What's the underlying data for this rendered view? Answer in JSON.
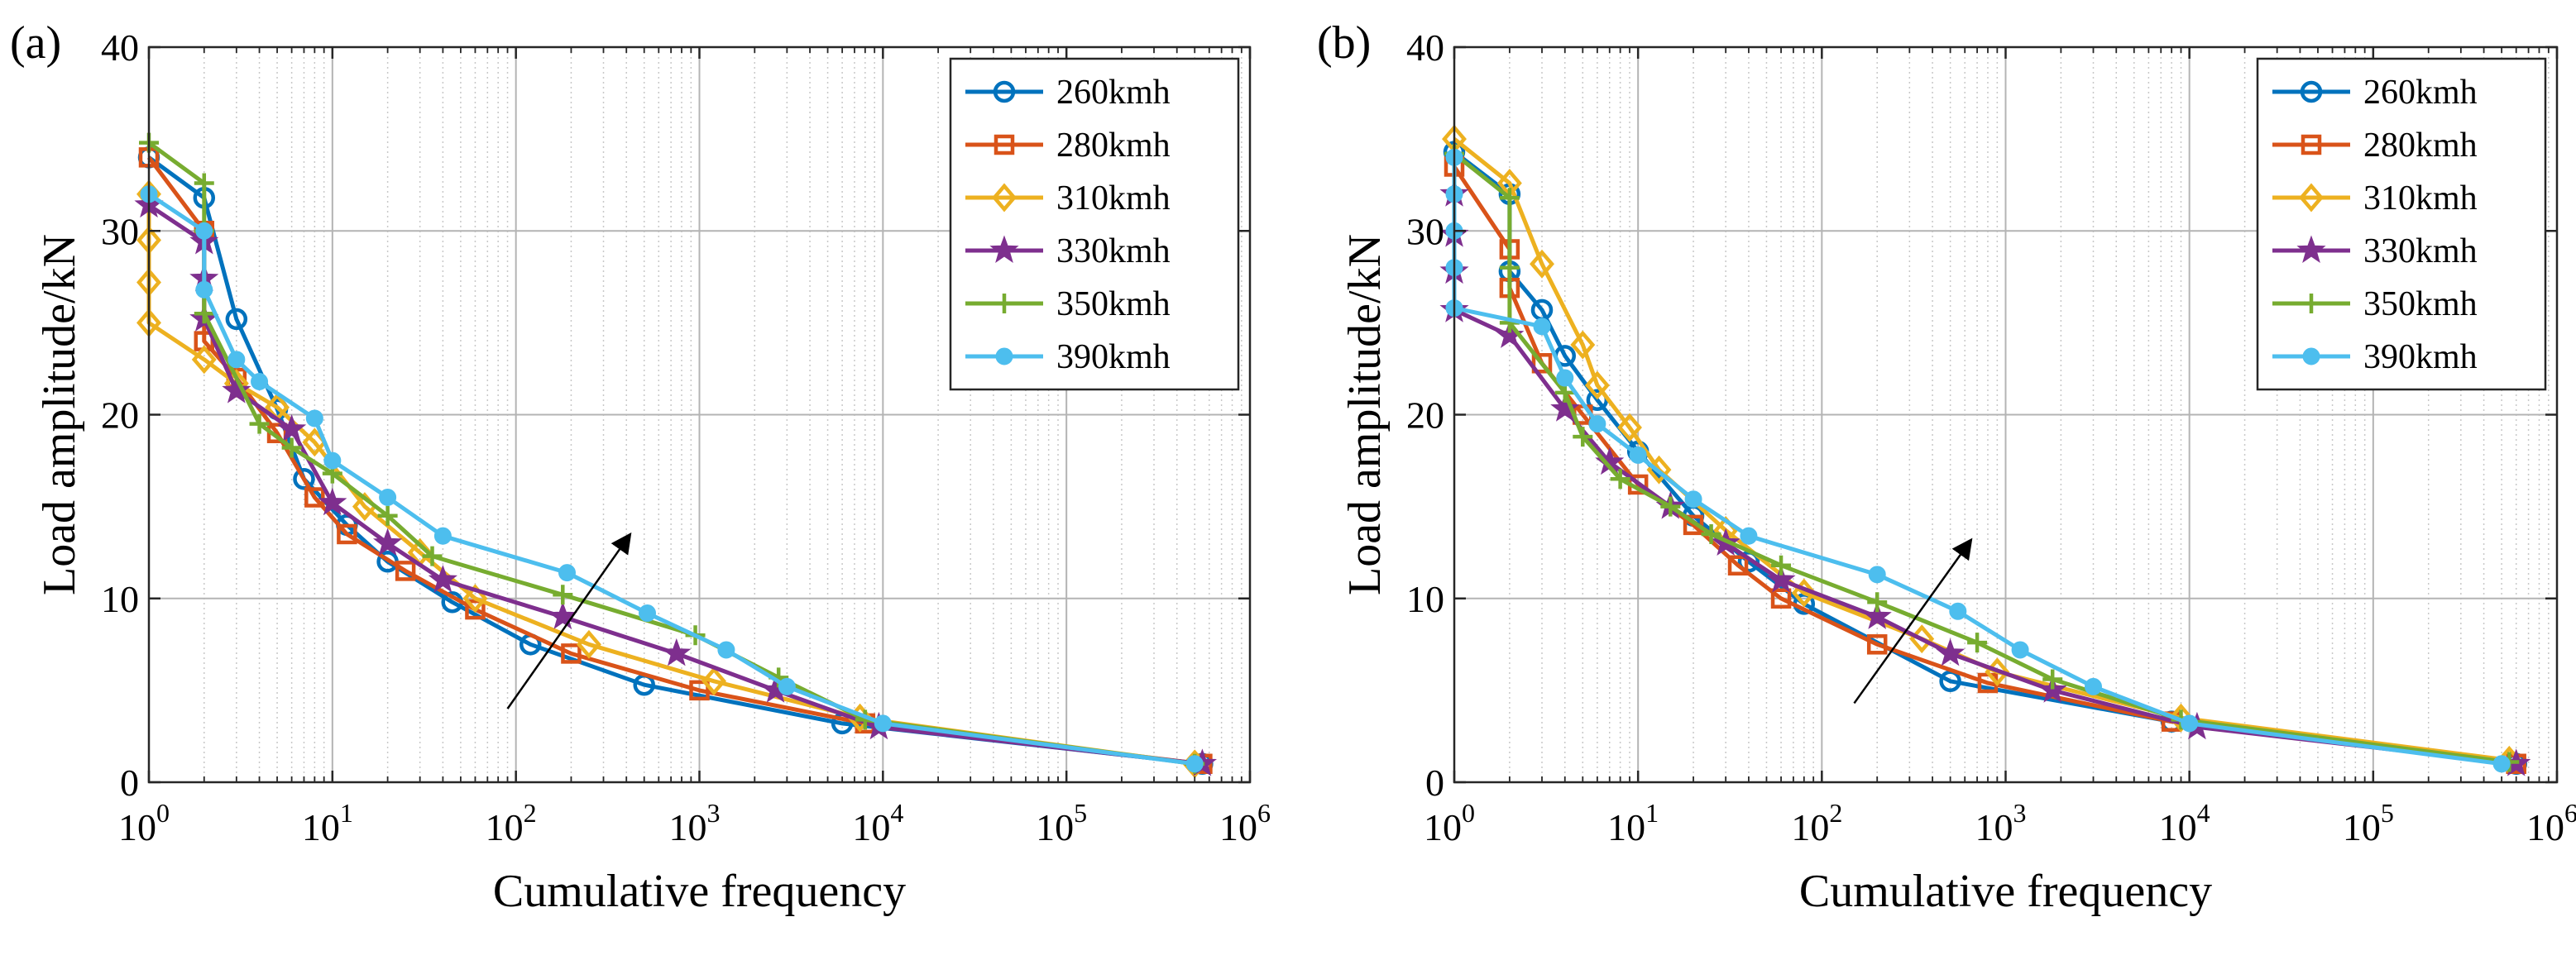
{
  "chart_data": [
    {
      "panel": "(a)",
      "type": "line",
      "xscale": "log",
      "xlim": [
        1,
        1000000
      ],
      "ylim": [
        0,
        40
      ],
      "yticks": [
        0,
        10,
        20,
        30,
        40
      ],
      "xtick_exponents": [
        0,
        1,
        2,
        3,
        4,
        5,
        6
      ],
      "xtick_base": "10",
      "xlabel": "Cumulative frequency",
      "ylabel": "Load amplitude/kN",
      "grid": true,
      "legend_position": "top-right",
      "arrow": {
        "from": [
          90,
          4
        ],
        "to": [
          420,
          13.5
        ]
      },
      "series": [
        {
          "name": "260kmh",
          "color": "#0072BD",
          "marker": "circle",
          "x": [
            1,
            2,
            3,
            5,
            7,
            12,
            20,
            45,
            120,
            500,
            6000,
            550000
          ],
          "y": [
            34,
            31.8,
            25.2,
            20.3,
            16.5,
            14,
            12,
            9.8,
            7.5,
            5.3,
            3.2,
            1
          ]
        },
        {
          "name": "280kmh",
          "color": "#D95319",
          "marker": "square",
          "x": [
            1,
            2,
            2,
            3,
            5,
            8,
            12,
            25,
            60,
            200,
            1000,
            8000,
            550000
          ],
          "y": [
            34,
            30,
            24,
            22,
            19,
            15.5,
            13.5,
            11.5,
            9.4,
            7,
            5,
            3.2,
            1
          ]
        },
        {
          "name": "310kmh",
          "color": "#EDB120",
          "marker": "diamond",
          "x": [
            1,
            1,
            1,
            1,
            2,
            3,
            5,
            8,
            15,
            30,
            60,
            250,
            1200,
            7500,
            500000
          ],
          "y": [
            32,
            29.5,
            27.2,
            25,
            23,
            21.7,
            20.4,
            18.5,
            15,
            12.5,
            10,
            7.5,
            5.5,
            3.5,
            1
          ]
        },
        {
          "name": "330kmh",
          "color": "#7E2F8E",
          "marker": "star",
          "x": [
            1,
            2,
            2,
            2,
            3,
            6,
            10,
            20,
            40,
            180,
            750,
            2600,
            9500,
            550000
          ],
          "y": [
            31.4,
            29.4,
            27.4,
            25.2,
            21.3,
            19.2,
            15.2,
            13,
            11,
            9,
            7,
            5,
            3,
            1
          ]
        },
        {
          "name": "350kmh",
          "color": "#77AC30",
          "marker": "plus",
          "x": [
            1,
            2,
            2,
            2,
            4,
            6,
            10,
            20,
            35,
            180,
            950,
            2700,
            8000,
            500000
          ],
          "y": [
            34.8,
            32.6,
            30,
            25.5,
            19.5,
            18.2,
            16.8,
            14.5,
            12.3,
            10.2,
            8,
            5.7,
            3.4,
            1
          ]
        },
        {
          "name": "390kmh",
          "color": "#4DBEEE",
          "marker": "dot",
          "x": [
            1,
            2,
            2,
            3,
            4,
            8,
            10,
            20,
            40,
            190,
            520,
            1400,
            3000,
            10000,
            500000
          ],
          "y": [
            32,
            30,
            26.8,
            23,
            21.8,
            19.8,
            17.5,
            15.5,
            13.4,
            11.4,
            9.2,
            7.2,
            5.2,
            3.2,
            1
          ]
        }
      ]
    },
    {
      "panel": "(b)",
      "type": "line",
      "xscale": "log",
      "xlim": [
        1,
        1000000
      ],
      "ylim": [
        0,
        40
      ],
      "yticks": [
        0,
        10,
        20,
        30,
        40
      ],
      "xtick_exponents": [
        0,
        1,
        2,
        3,
        4,
        5,
        6
      ],
      "xtick_base": "10",
      "xlabel": "Cumulative frequency",
      "ylabel": "Load amplitude/kN",
      "grid": true,
      "legend_position": "top-right",
      "arrow": {
        "from": [
          150,
          4.3
        ],
        "to": [
          650,
          13.2
        ]
      },
      "series": [
        {
          "name": "260kmh",
          "color": "#0072BD",
          "marker": "circle",
          "x": [
            1,
            2,
            2,
            3,
            4,
            6,
            10,
            20,
            40,
            80,
            500,
            8000,
            600000
          ],
          "y": [
            34.3,
            32,
            27.8,
            25.7,
            23.2,
            20.8,
            18,
            14.5,
            12,
            9.7,
            5.5,
            3.3,
            1
          ]
        },
        {
          "name": "280kmh",
          "color": "#D95319",
          "marker": "square",
          "x": [
            1,
            2,
            2,
            3,
            5,
            10,
            20,
            35,
            60,
            200,
            800,
            8000,
            600000
          ],
          "y": [
            33.5,
            29,
            26.9,
            22.8,
            20,
            16.2,
            14,
            11.8,
            10,
            7.5,
            5.4,
            3.3,
            1
          ]
        },
        {
          "name": "310kmh",
          "color": "#EDB120",
          "marker": "diamond",
          "x": [
            1,
            2,
            3,
            5,
            6,
            9,
            13,
            30,
            80,
            350,
            900,
            9000,
            550000
          ],
          "y": [
            35,
            32.6,
            28.2,
            23.8,
            21.6,
            19.3,
            17,
            13.7,
            10.3,
            7.8,
            6,
            3.5,
            1.2
          ]
        },
        {
          "name": "330kmh",
          "color": "#7E2F8E",
          "marker": "star",
          "x": [
            1,
            1,
            1,
            1,
            2,
            4,
            7,
            15,
            30,
            60,
            200,
            500,
            1800,
            11000,
            600000
          ],
          "y": [
            32,
            29.8,
            27.8,
            25.7,
            24.3,
            20.3,
            17.4,
            15,
            13,
            11,
            9,
            7,
            5,
            3,
            1
          ]
        },
        {
          "name": "350kmh",
          "color": "#77AC30",
          "marker": "plus",
          "x": [
            1,
            2,
            2,
            2,
            4,
            5,
            8,
            15,
            25,
            60,
            200,
            700,
            1800,
            9000,
            550000
          ],
          "y": [
            34.2,
            31.8,
            28,
            25,
            21.2,
            18.8,
            16.5,
            15,
            13.5,
            11.8,
            9.8,
            7.6,
            5.6,
            3.4,
            1.1
          ]
        },
        {
          "name": "390kmh",
          "color": "#4DBEEE",
          "marker": "dot",
          "x": [
            1,
            1,
            1,
            1,
            1,
            3,
            4,
            6,
            10,
            20,
            40,
            200,
            550,
            1200,
            3000,
            10000,
            500000
          ],
          "y": [
            34,
            32,
            30,
            28,
            25.8,
            24.8,
            22,
            19.5,
            17.8,
            15.4,
            13.4,
            11.3,
            9.3,
            7.2,
            5.2,
            3.2,
            1
          ]
        }
      ]
    }
  ]
}
